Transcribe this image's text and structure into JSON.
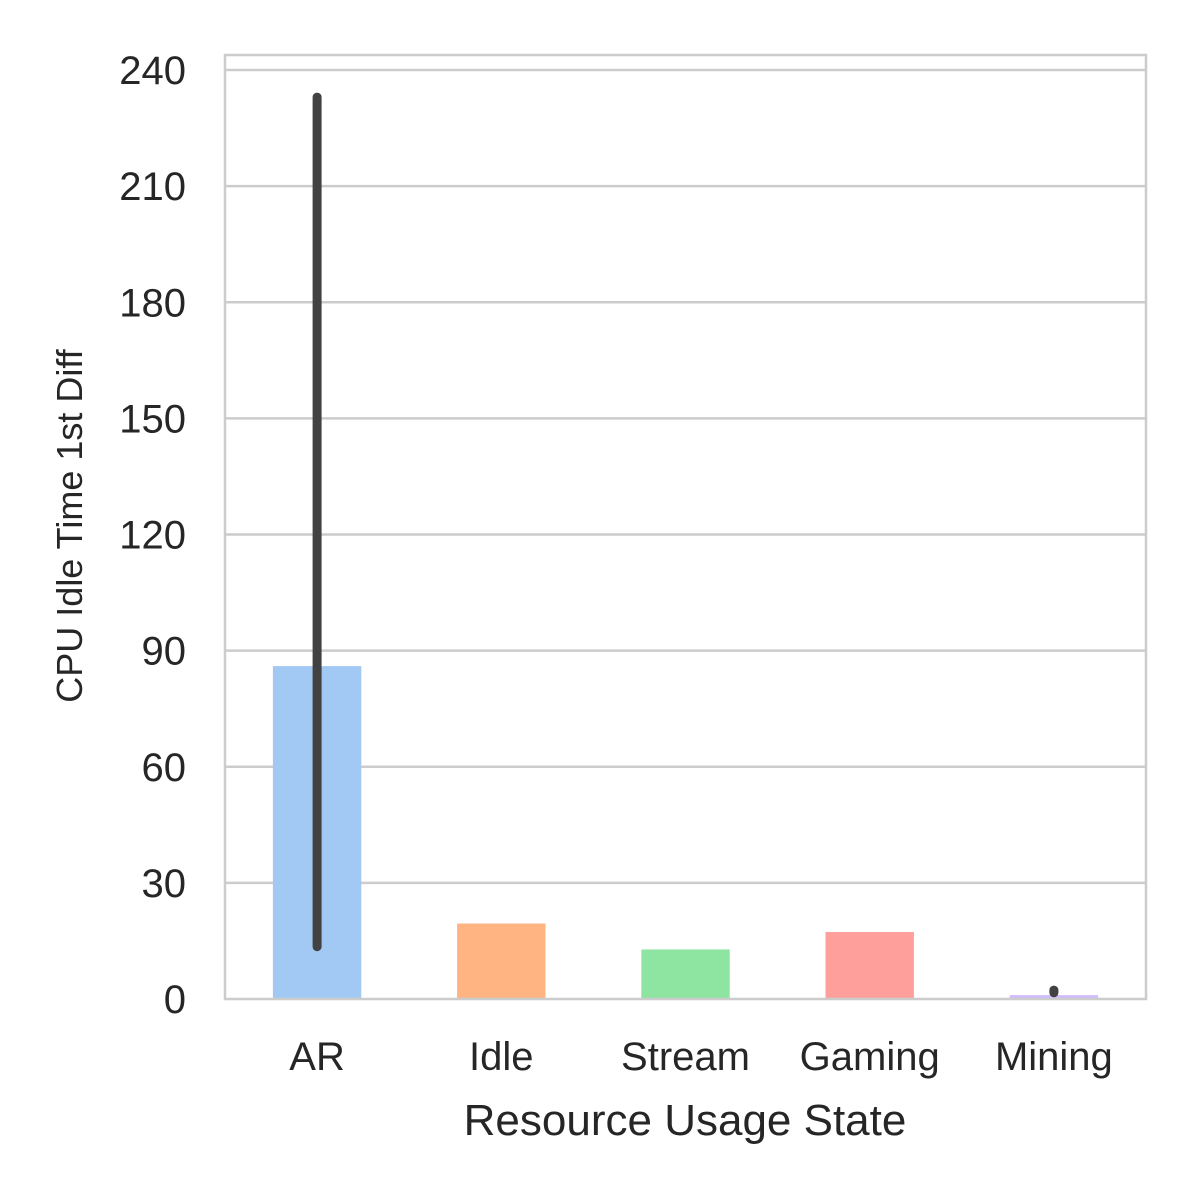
{
  "chart_data": {
    "type": "bar",
    "title": "",
    "xlabel": "Resource Usage State",
    "ylabel": "CPU Idle Time 1st Diff",
    "categories": [
      "AR",
      "Idle",
      "Stream",
      "Gaming",
      "Mining"
    ],
    "values": [
      86,
      19.5,
      12.8,
      17.3,
      1.0
    ],
    "error_bars": [
      {
        "low": 13.5,
        "high": 233
      },
      null,
      null,
      null,
      {
        "low": 1.6,
        "high": 2.3
      }
    ],
    "colors": [
      "#a1c9f4",
      "#ffb482",
      "#8de5a1",
      "#ff9f9b",
      "#d0bbff"
    ],
    "error_bar_color": "#424242",
    "ylim": [
      0,
      240
    ],
    "yticks": [
      0,
      30,
      60,
      90,
      120,
      150,
      180,
      210,
      240
    ],
    "ytick_labels": [
      "0",
      "30",
      "60",
      "90",
      "120",
      "150",
      "180",
      "210",
      "240"
    ],
    "grid": true
  }
}
